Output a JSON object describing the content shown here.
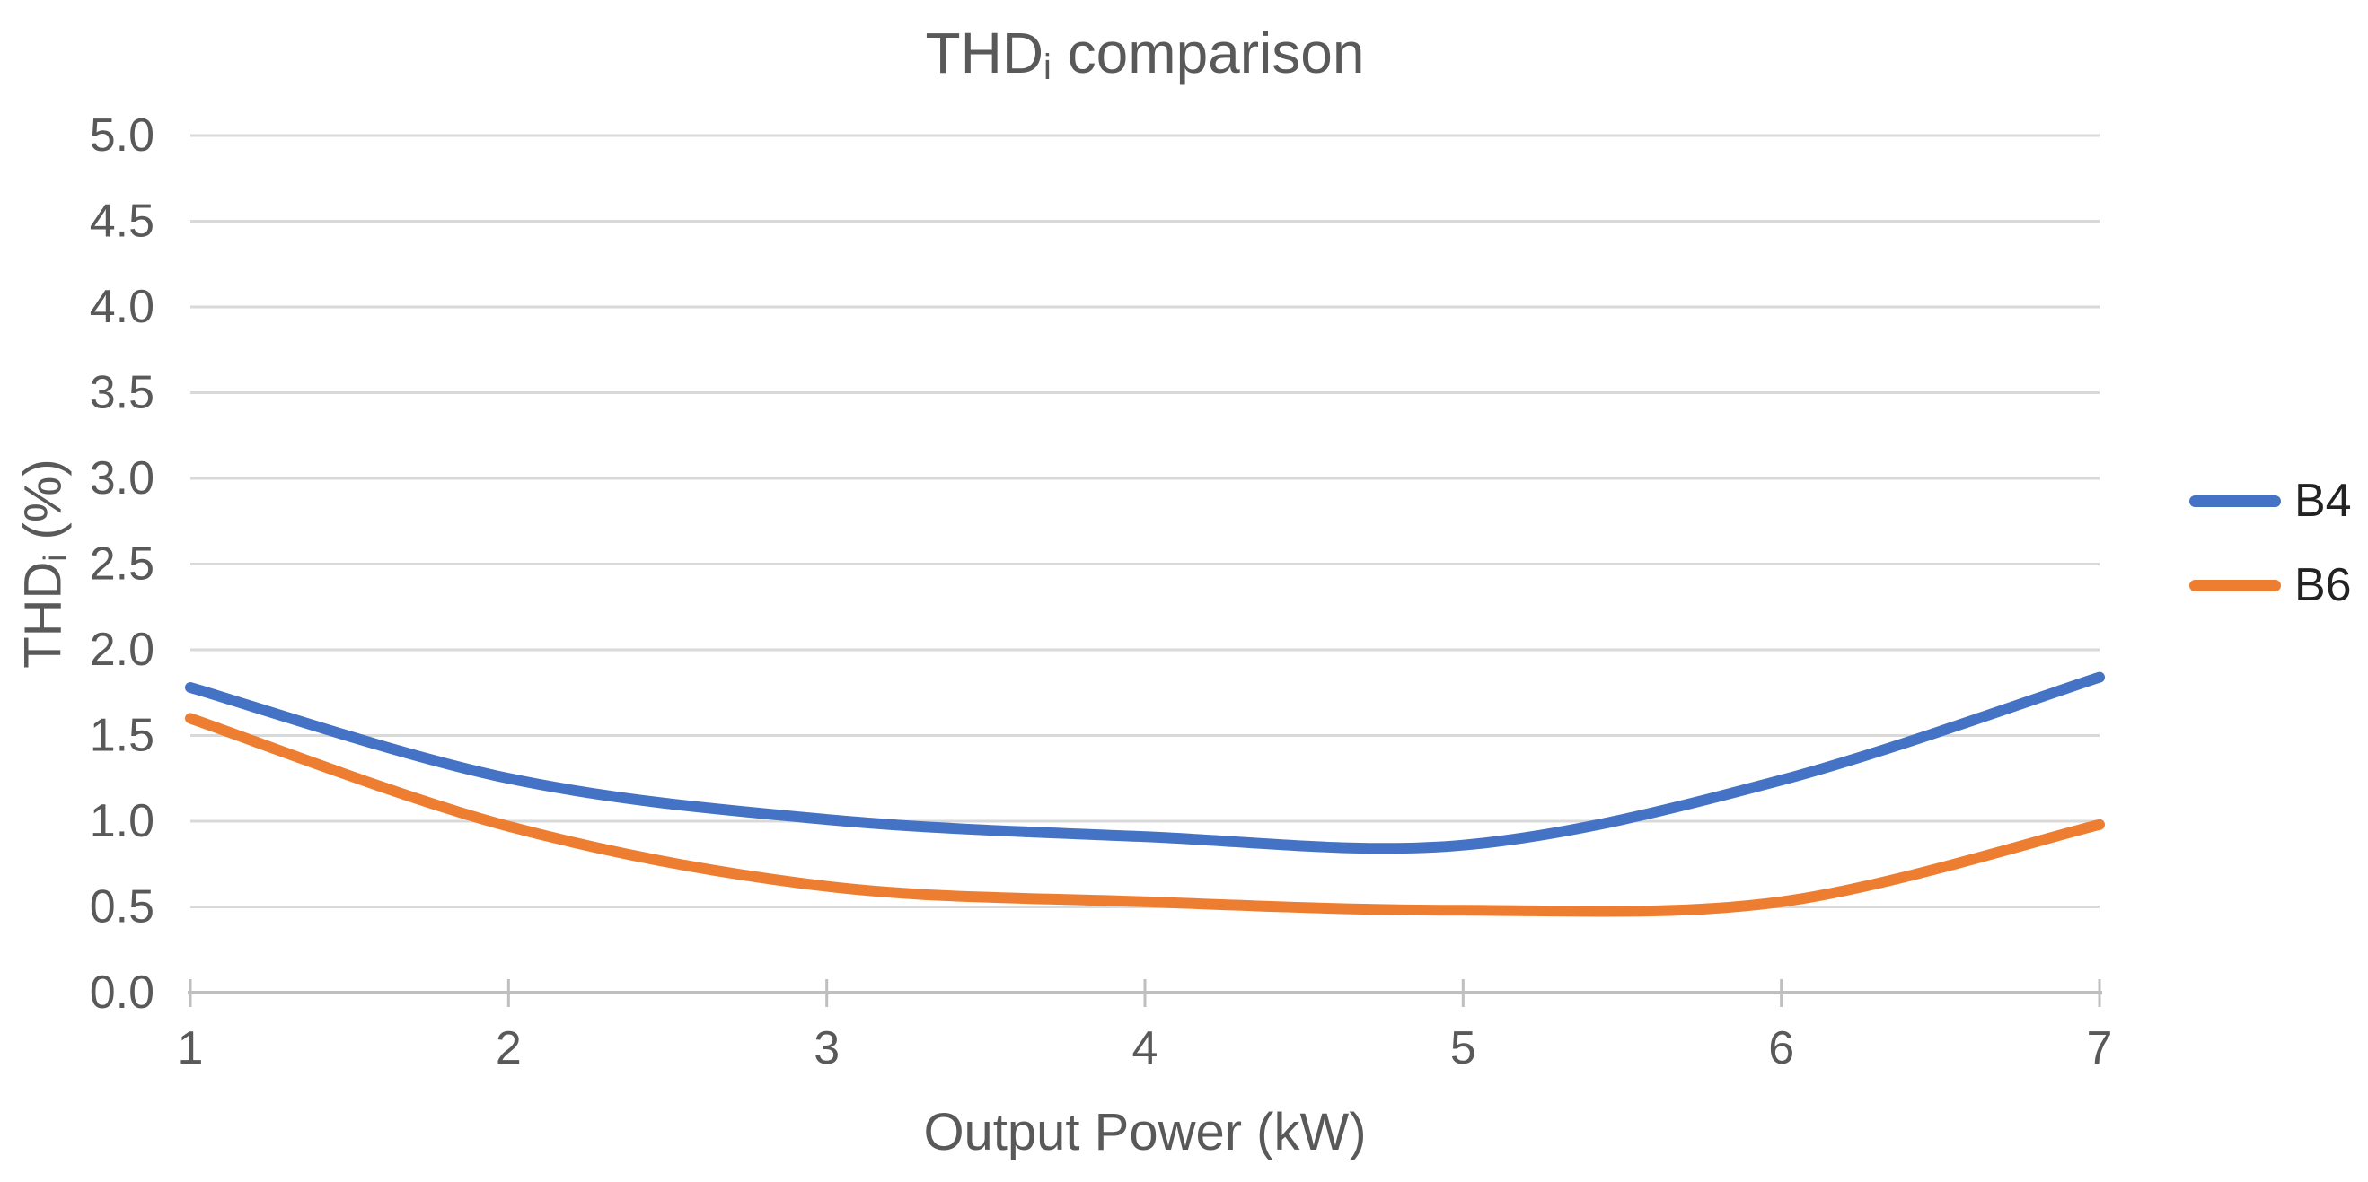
{
  "display": {
    "title": {
      "prefix": "THD",
      "sub": "i",
      "suffix": " comparison"
    },
    "y_title": {
      "prefix": "THD",
      "sub": "i",
      "suffix": " (%)"
    },
    "x_title": "Output Power (kW)"
  },
  "chart_data": {
    "type": "line",
    "title": "THDᵢ comparison",
    "xlabel": "Output Power (kW)",
    "ylabel": "THDᵢ (%)",
    "x": [
      1,
      2,
      3,
      4,
      5,
      6,
      7
    ],
    "series": [
      {
        "name": "B4",
        "color": "#4472C4",
        "values": [
          1.78,
          1.25,
          1.01,
          0.91,
          0.86,
          1.24,
          1.84
        ]
      },
      {
        "name": "B6",
        "color": "#ED7D31",
        "values": [
          1.6,
          0.97,
          0.62,
          0.53,
          0.48,
          0.53,
          0.98
        ]
      }
    ],
    "xlim": [
      1,
      7
    ],
    "ylim": [
      0.0,
      5.0
    ],
    "x_tick_labels": [
      "1",
      "2",
      "3",
      "4",
      "5",
      "6",
      "7"
    ],
    "y_tick_labels": [
      "0.0",
      "0.5",
      "1.0",
      "1.5",
      "2.0",
      "2.5",
      "3.0",
      "3.5",
      "4.0",
      "4.5",
      "5.0"
    ],
    "y_tick_step": 0.5,
    "grid": "horizontal",
    "legend_position": "right",
    "smoothed_lines": true
  },
  "colors": {
    "background": "#FFFFFF",
    "title_text": "#595959",
    "axis_text": "#595959",
    "legend_text": "#222222",
    "gridline": "#D9D9D9",
    "axis_line": "#BFBFBF",
    "series_b4": "#4472C4",
    "series_b6": "#ED7D31"
  }
}
